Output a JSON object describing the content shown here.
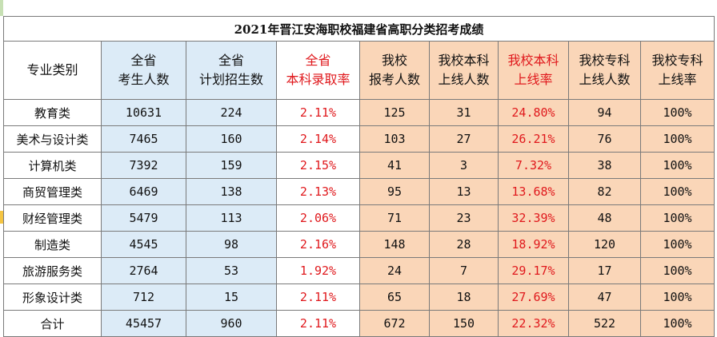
{
  "title": "2021年晋江安海职校福建省高职分类招考成绩",
  "headers": [
    {
      "line1": "专业类别",
      "line2": ""
    },
    {
      "line1": "全省",
      "line2": "考生人数"
    },
    {
      "line1": "全省",
      "line2": "计划招生数"
    },
    {
      "line1": "全省",
      "line2": "本科录取率"
    },
    {
      "line1": "我校",
      "line2": "报考人数"
    },
    {
      "line1": "我校本科",
      "line2": "上线人数"
    },
    {
      "line1": "我校本科",
      "line2": "上线率"
    },
    {
      "line1": "我校专科",
      "line2": "上线人数"
    },
    {
      "line1": "我校专科",
      "line2": "上线率"
    }
  ],
  "rows": [
    [
      "教育类",
      "10631",
      "224",
      "2.11%",
      "125",
      "31",
      "24.80%",
      "94",
      "100%"
    ],
    [
      "美术与设计类",
      "7465",
      "160",
      "2.14%",
      "103",
      "27",
      "26.21%",
      "76",
      "100%"
    ],
    [
      "计算机类",
      "7392",
      "159",
      "2.15%",
      "41",
      "3",
      "7.32%",
      "38",
      "100%"
    ],
    [
      "商贸管理类",
      "6469",
      "138",
      "2.13%",
      "95",
      "13",
      "13.68%",
      "82",
      "100%"
    ],
    [
      "财经管理类",
      "5479",
      "113",
      "2.06%",
      "71",
      "23",
      "32.39%",
      "48",
      "100%"
    ],
    [
      "制造类",
      "4545",
      "98",
      "2.16%",
      "148",
      "28",
      "18.92%",
      "120",
      "100%"
    ],
    [
      "旅游服务类",
      "2764",
      "53",
      "1.92%",
      "24",
      "7",
      "29.17%",
      "17",
      "100%"
    ],
    [
      "形象设计类",
      "712",
      "15",
      "2.11%",
      "65",
      "18",
      "27.69%",
      "47",
      "100%"
    ],
    [
      "合计",
      "45457",
      "960",
      "2.11%",
      "672",
      "150",
      "22.32%",
      "522",
      "100%"
    ]
  ],
  "colors": {
    "blue_fill": "#dcebf7",
    "orange_fill": "#fad6b8",
    "red_text": "#e0191d"
  }
}
